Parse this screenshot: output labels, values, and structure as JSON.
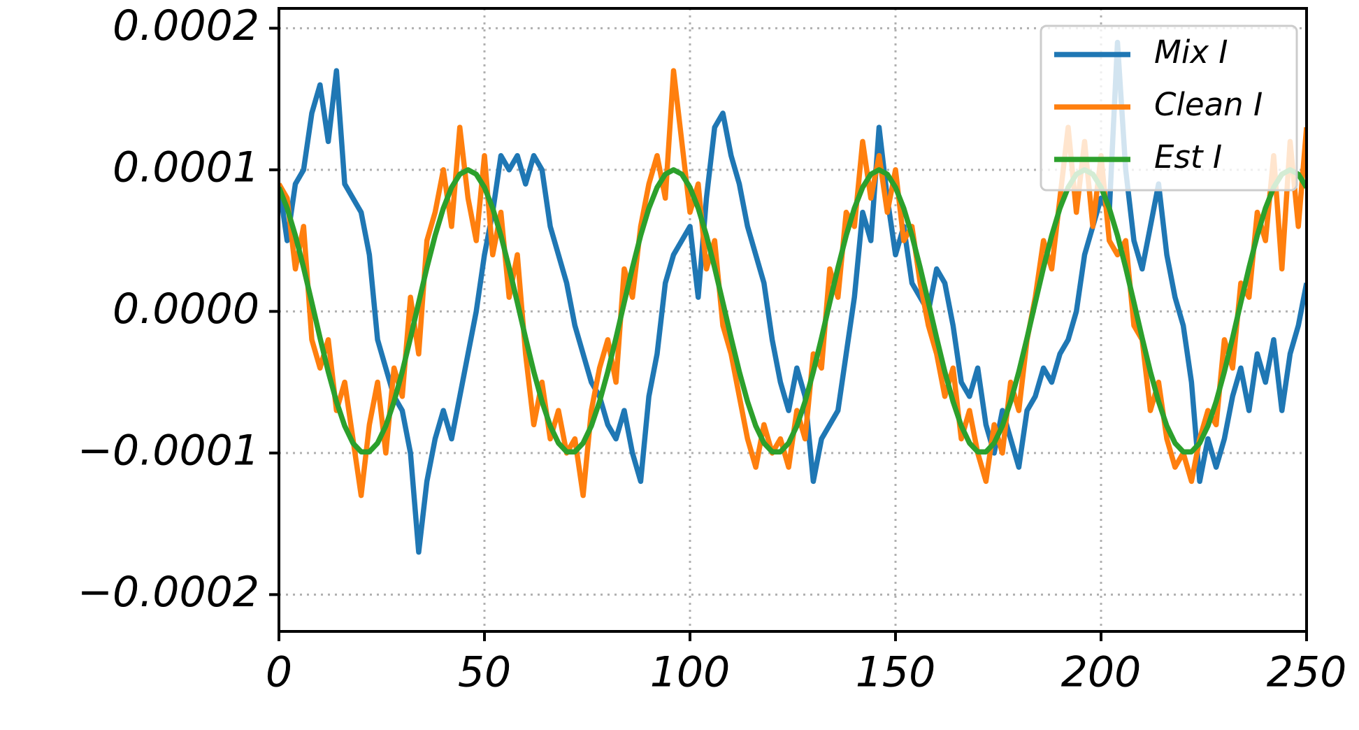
{
  "chart_data": {
    "type": "line",
    "x": [
      0,
      2,
      4,
      6,
      8,
      10,
      12,
      14,
      16,
      18,
      20,
      22,
      24,
      26,
      28,
      30,
      32,
      34,
      36,
      38,
      40,
      42,
      44,
      46,
      48,
      50,
      52,
      54,
      56,
      58,
      60,
      62,
      64,
      66,
      68,
      70,
      72,
      74,
      76,
      78,
      80,
      82,
      84,
      86,
      88,
      90,
      92,
      94,
      96,
      98,
      100,
      102,
      104,
      106,
      108,
      110,
      112,
      114,
      116,
      118,
      120,
      122,
      124,
      126,
      128,
      130,
      132,
      134,
      136,
      138,
      140,
      142,
      144,
      146,
      148,
      150,
      152,
      154,
      156,
      158,
      160,
      162,
      164,
      166,
      168,
      170,
      172,
      174,
      176,
      178,
      180,
      182,
      184,
      186,
      188,
      190,
      192,
      194,
      196,
      198,
      200,
      202,
      204,
      206,
      208,
      210,
      212,
      214,
      216,
      218,
      220,
      222,
      224,
      226,
      228,
      230,
      232,
      234,
      236,
      238,
      240,
      242,
      244,
      246,
      248,
      250
    ],
    "series": [
      {
        "name": "Mix I",
        "color": "#1f77b4",
        "values": [
          9e-05,
          5e-05,
          9e-05,
          0.0001,
          0.00014,
          0.00016,
          0.00012,
          0.00017,
          9e-05,
          8e-05,
          7e-05,
          4e-05,
          -2e-05,
          -4e-05,
          -6e-05,
          -7e-05,
          -0.0001,
          -0.00017,
          -0.00012,
          -9e-05,
          -7e-05,
          -9e-05,
          -6e-05,
          -3e-05,
          0,
          4e-05,
          7e-05,
          0.00011,
          0.0001,
          0.00011,
          9e-05,
          0.00011,
          0.0001,
          6e-05,
          4e-05,
          2e-05,
          -1e-05,
          -3e-05,
          -5e-05,
          -6e-05,
          -8e-05,
          -9e-05,
          -7e-05,
          -0.0001,
          -0.00012,
          -6e-05,
          -3e-05,
          2e-05,
          4e-05,
          5e-05,
          6e-05,
          1e-05,
          8e-05,
          0.00013,
          0.00014,
          0.00011,
          9e-05,
          6e-05,
          4e-05,
          2e-05,
          -2e-05,
          -5e-05,
          -7e-05,
          -4e-05,
          -6e-05,
          -0.00012,
          -9e-05,
          -8e-05,
          -7e-05,
          -3e-05,
          1e-05,
          7e-05,
          5e-05,
          0.00013,
          8e-05,
          4e-05,
          6e-05,
          2e-05,
          1e-05,
          0,
          3e-05,
          2e-05,
          -1e-05,
          -5e-05,
          -6e-05,
          -4e-05,
          -8e-05,
          -0.0001,
          -7e-05,
          -9e-05,
          -0.00011,
          -7e-05,
          -6e-05,
          -4e-05,
          -5e-05,
          -3e-05,
          -2e-05,
          0,
          4e-05,
          6e-05,
          8e-05,
          7e-05,
          0.00019,
          0.0001,
          5e-05,
          3e-05,
          6e-05,
          9e-05,
          4e-05,
          1e-05,
          -1e-05,
          -5e-05,
          -0.00012,
          -9e-05,
          -0.00011,
          -9e-05,
          -6e-05,
          -4e-05,
          -7e-05,
          -3e-05,
          -5e-05,
          -2e-05,
          -7e-05,
          -3e-05,
          -1e-05,
          2e-05
        ]
      },
      {
        "name": "Clean I",
        "color": "#ff7f0e",
        "values": [
          9e-05,
          8e-05,
          3e-05,
          6e-05,
          -2e-05,
          -4e-05,
          -2e-05,
          -7e-05,
          -5e-05,
          -9e-05,
          -0.00013,
          -8e-05,
          -5e-05,
          -0.0001,
          -4e-05,
          -6e-05,
          1e-05,
          -3e-05,
          5e-05,
          7e-05,
          0.0001,
          6e-05,
          0.00013,
          8e-05,
          5e-05,
          0.00011,
          4e-05,
          7e-05,
          1e-05,
          4e-05,
          -3e-05,
          -8e-05,
          -5e-05,
          -9e-05,
          -7e-05,
          -0.0001,
          -9e-05,
          -0.00013,
          -7e-05,
          -4e-05,
          -2e-05,
          -5e-05,
          3e-05,
          1e-05,
          6e-05,
          9e-05,
          0.00011,
          8e-05,
          0.00017,
          0.00012,
          7e-05,
          9e-05,
          3e-05,
          5e-05,
          -1e-05,
          -3e-05,
          -6e-05,
          -9e-05,
          -0.00011,
          -8e-05,
          -0.0001,
          -9e-05,
          -0.00011,
          -7e-05,
          -9e-05,
          -3e-05,
          -4e-05,
          3e-05,
          1e-05,
          7e-05,
          6e-05,
          0.00012,
          8e-05,
          0.00011,
          7e-05,
          0.0001,
          5e-05,
          6e-05,
          2e-05,
          -1e-05,
          -3e-05,
          -6e-05,
          -4e-05,
          -9e-05,
          -7e-05,
          -0.0001,
          -0.00012,
          -8e-05,
          -0.0001,
          -5e-05,
          -7e-05,
          -2e-05,
          1e-05,
          5e-05,
          3e-05,
          8e-05,
          0.00013,
          7e-05,
          0.00012,
          6e-05,
          0.00011,
          5e-05,
          4e-05,
          5e-05,
          -1e-05,
          -2e-05,
          -7e-05,
          -5e-05,
          -9e-05,
          -0.00011,
          -0.0001,
          -0.00012,
          -9e-05,
          -7e-05,
          -8e-05,
          -2e-05,
          -4e-05,
          2e-05,
          1e-05,
          7e-05,
          5e-05,
          0.00011,
          3e-05,
          0.00012,
          6e-05,
          0.00013
        ]
      },
      {
        "name": "Est I",
        "color": "#2ca02c",
        "values": [
          8.76e-05,
          7.29e-05,
          5.36e-05,
          3.09e-05,
          6.3e-06,
          -1.87e-05,
          -4.26e-05,
          -6.37e-05,
          -8.09e-05,
          -9.3e-05,
          -9.92e-05,
          -9.92e-05,
          -9.3e-05,
          -8.09e-05,
          -6.37e-05,
          -4.26e-05,
          -1.87e-05,
          6.3e-06,
          3.09e-05,
          5.36e-05,
          7.29e-05,
          8.76e-05,
          9.69e-05,
          0.0001,
          9.69e-05,
          8.76e-05,
          7.29e-05,
          5.36e-05,
          3.09e-05,
          6.3e-06,
          -1.87e-05,
          -4.26e-05,
          -6.37e-05,
          -8.09e-05,
          -9.3e-05,
          -9.92e-05,
          -9.92e-05,
          -9.3e-05,
          -8.09e-05,
          -6.37e-05,
          -4.26e-05,
          -1.87e-05,
          6.3e-06,
          3.09e-05,
          5.36e-05,
          7.29e-05,
          8.76e-05,
          9.69e-05,
          0.0001,
          9.69e-05,
          8.76e-05,
          7.29e-05,
          5.36e-05,
          3.09e-05,
          6.3e-06,
          -1.87e-05,
          -4.26e-05,
          -6.37e-05,
          -8.09e-05,
          -9.3e-05,
          -9.92e-05,
          -9.92e-05,
          -9.3e-05,
          -8.09e-05,
          -6.37e-05,
          -4.26e-05,
          -1.87e-05,
          6.3e-06,
          3.09e-05,
          5.36e-05,
          7.29e-05,
          8.76e-05,
          9.69e-05,
          0.0001,
          9.69e-05,
          8.76e-05,
          7.29e-05,
          5.36e-05,
          3.09e-05,
          6.3e-06,
          -1.87e-05,
          -4.26e-05,
          -6.37e-05,
          -8.09e-05,
          -9.3e-05,
          -9.92e-05,
          -9.92e-05,
          -9.3e-05,
          -8.09e-05,
          -6.37e-05,
          -4.26e-05,
          -1.87e-05,
          6.3e-06,
          3.09e-05,
          5.36e-05,
          7.29e-05,
          8.76e-05,
          9.69e-05,
          0.0001,
          9.69e-05,
          8.76e-05,
          7.29e-05,
          5.36e-05,
          3.09e-05,
          6.3e-06,
          -1.87e-05,
          -4.26e-05,
          -6.37e-05,
          -8.09e-05,
          -9.3e-05,
          -9.92e-05,
          -9.92e-05,
          -9.3e-05,
          -8.09e-05,
          -6.37e-05,
          -4.26e-05,
          -1.87e-05,
          6.3e-06,
          3.09e-05,
          5.36e-05,
          7.29e-05,
          8.76e-05,
          9.69e-05,
          0.0001,
          9.69e-05,
          8.76e-05
        ]
      }
    ],
    "xlim": [
      0,
      250
    ],
    "xticks": [
      0,
      50,
      100,
      150,
      200,
      250
    ],
    "ylim": [
      -0.000226,
      0.000214
    ],
    "yticks": [
      {
        "value": -0.0002,
        "label": "−0.0002"
      },
      {
        "value": -0.0001,
        "label": "−0.0001"
      },
      {
        "value": 0,
        "label": "0.0000"
      },
      0.0001,
      0.0002
    ],
    "grid": true,
    "legend": "upper-right"
  }
}
